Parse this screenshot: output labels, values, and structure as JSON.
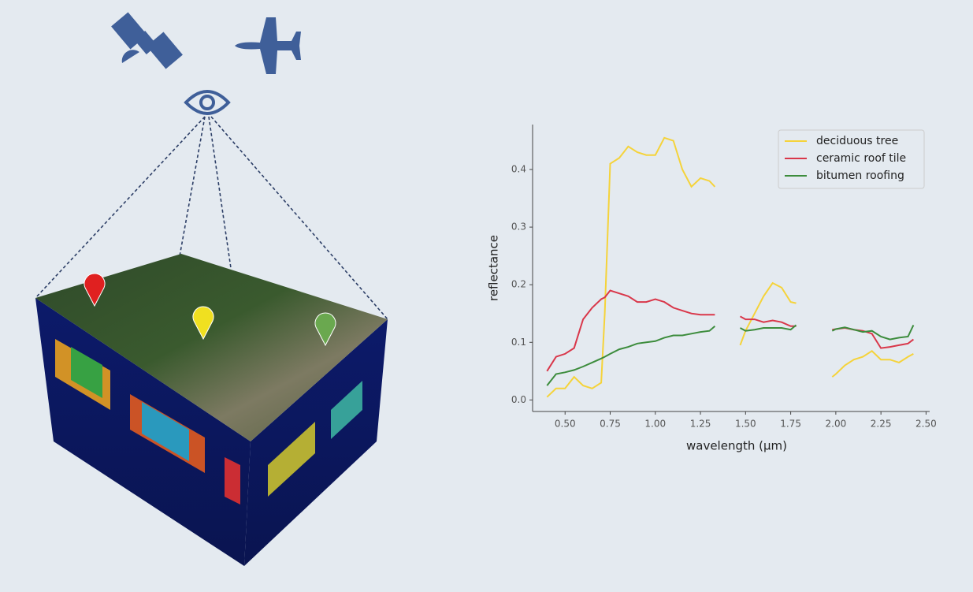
{
  "chart_data": {
    "type": "line",
    "x_label": "wavelength (μm)",
    "y_label": "reflectance",
    "x": [
      0.4,
      0.45,
      0.5,
      0.55,
      0.6,
      0.65,
      0.7,
      0.72,
      0.75,
      0.8,
      0.85,
      0.9,
      0.95,
      1.0,
      1.05,
      1.1,
      1.15,
      1.2,
      1.25,
      1.3,
      1.33,
      1.4,
      1.47,
      1.5,
      1.55,
      1.6,
      1.65,
      1.7,
      1.75,
      1.78,
      1.88,
      1.98,
      2.0,
      2.05,
      2.1,
      2.15,
      2.2,
      2.25,
      2.3,
      2.35,
      2.4,
      2.43
    ],
    "series": [
      {
        "name": "deciduous tree",
        "color": "#f5d33a",
        "values": [
          0.005,
          0.02,
          0.02,
          0.04,
          0.025,
          0.02,
          0.03,
          0.15,
          0.41,
          0.42,
          0.44,
          0.43,
          0.425,
          0.425,
          0.455,
          0.45,
          0.4,
          0.37,
          0.385,
          0.38,
          0.37,
          null,
          0.095,
          0.12,
          0.15,
          0.18,
          0.203,
          0.195,
          0.17,
          0.168,
          null,
          0.04,
          0.045,
          0.06,
          0.07,
          0.075,
          0.085,
          0.07,
          0.07,
          0.065,
          0.075,
          0.08
        ]
      },
      {
        "name": "ceramic roof tile",
        "color": "#d9374a",
        "values": [
          0.05,
          0.075,
          0.08,
          0.09,
          0.14,
          0.16,
          0.175,
          0.178,
          0.19,
          0.185,
          0.18,
          0.17,
          0.17,
          0.175,
          0.17,
          0.16,
          0.155,
          0.15,
          0.148,
          0.148,
          0.148,
          null,
          0.145,
          0.14,
          0.14,
          0.135,
          0.138,
          0.135,
          0.128,
          0.128,
          null,
          0.122,
          0.123,
          0.125,
          0.122,
          0.12,
          0.115,
          0.09,
          0.092,
          0.095,
          0.098,
          0.105
        ]
      },
      {
        "name": "bitumen roofing",
        "color": "#3c8c3c",
        "values": [
          0.025,
          0.045,
          0.048,
          0.052,
          0.058,
          0.065,
          0.072,
          0.075,
          0.08,
          0.088,
          0.092,
          0.098,
          0.1,
          0.102,
          0.108,
          0.112,
          0.112,
          0.115,
          0.118,
          0.12,
          0.128,
          null,
          0.125,
          0.12,
          0.122,
          0.125,
          0.125,
          0.125,
          0.122,
          0.13,
          null,
          0.12,
          0.123,
          0.126,
          0.122,
          0.118,
          0.12,
          0.11,
          0.105,
          0.108,
          0.11,
          0.13
        ]
      }
    ],
    "xlim": [
      0.32,
      2.52
    ],
    "ylim": [
      -0.02,
      0.478
    ],
    "xticks": [
      {
        "value": 0.5,
        "label": "0.50"
      },
      {
        "value": 0.75,
        "label": "0.75"
      },
      {
        "value": 1.0,
        "label": "1.00"
      },
      {
        "value": 1.25,
        "label": "1.25"
      },
      {
        "value": 1.5,
        "label": "1.50"
      },
      {
        "value": 1.75,
        "label": "1.75"
      },
      {
        "value": 2.0,
        "label": "2.00"
      },
      {
        "value": 2.25,
        "label": "2.25"
      },
      {
        "value": 2.5,
        "label": "2.50"
      }
    ],
    "yticks": [
      {
        "value": 0,
        "label": "0.0"
      },
      0.1,
      0.2,
      0.3,
      0.4
    ],
    "grid": false,
    "legend": "upper right"
  }
}
